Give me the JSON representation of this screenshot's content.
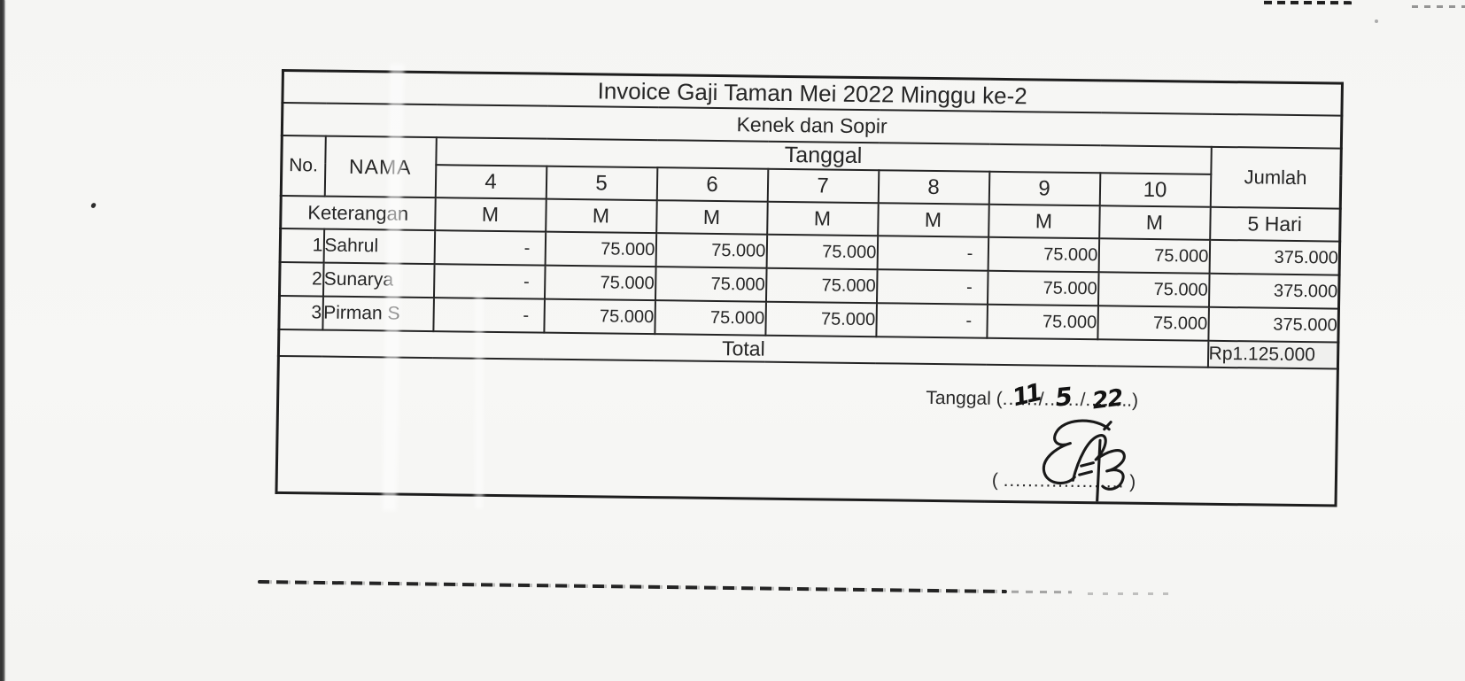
{
  "colors": {
    "ink": "#191919",
    "paper": "#f6f6f4",
    "table_line": "#242424"
  },
  "invoice": {
    "title": "Invoice Gaji Taman Mei 2022 Minggu ke-2",
    "subtitle": "Kenek dan Sopir",
    "header": {
      "no": "No.",
      "nama": "NAMA",
      "tanggal": "Tanggal",
      "jumlah": "Jumlah",
      "keterangan": "Keterangan",
      "jumlah_sub": "5 Hari"
    },
    "days": [
      "4",
      "5",
      "6",
      "7",
      "8",
      "9",
      "10"
    ],
    "marks": [
      "M",
      "M",
      "M",
      "M",
      "M",
      "M",
      "M"
    ],
    "rows": [
      {
        "no": "1",
        "nama": "Sahrul",
        "values": [
          "-",
          "75.000",
          "75.000",
          "75.000",
          "-",
          "75.000",
          "75.000"
        ],
        "jumlah": "375.000"
      },
      {
        "no": "2",
        "nama": "Sunarya",
        "values": [
          "-",
          "75.000",
          "75.000",
          "75.000",
          "-",
          "75.000",
          "75.000"
        ],
        "jumlah": "375.000"
      },
      {
        "no": "3",
        "nama": "Pirman S",
        "values": [
          "-",
          "75.000",
          "75.000",
          "75.000",
          "-",
          "75.000",
          "75.000"
        ],
        "jumlah": "375.000"
      }
    ],
    "total": {
      "label": "Total",
      "value": "Rp1.125.000"
    },
    "signature_block": {
      "tanggal_label": "Tanggal",
      "open_paren": "(",
      "dots": [
        "......",
        "......",
        "......"
      ],
      "slash": "/",
      "close_paren": "..)",
      "handwritten_date": {
        "day": "11",
        "month": "5",
        "year": "22"
      },
      "sign_open": "(",
      "sign_dots": "....................",
      "sign_close": ")"
    }
  }
}
